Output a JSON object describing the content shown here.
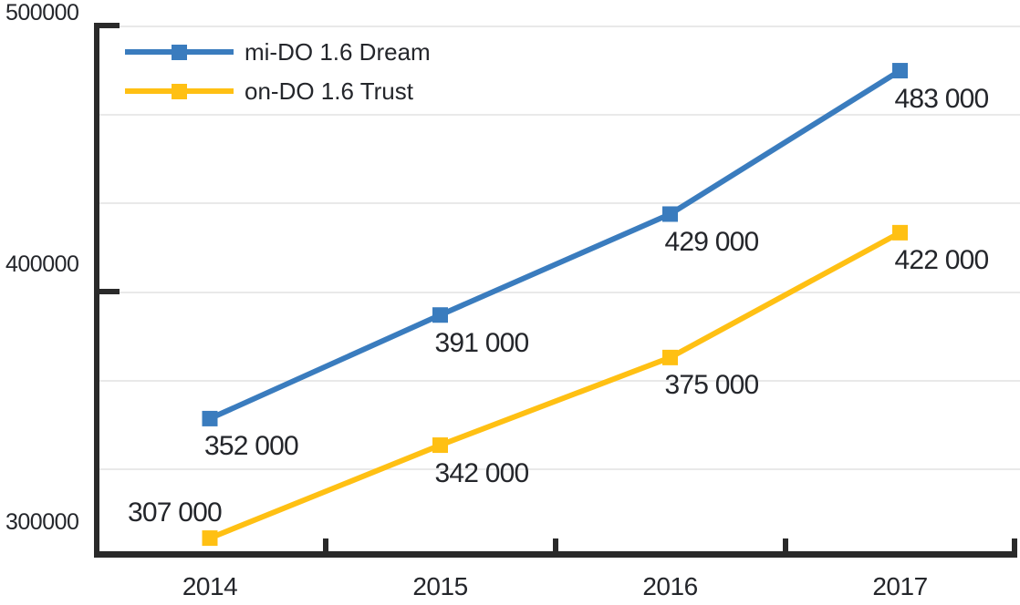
{
  "chart_data": {
    "type": "line",
    "categories": [
      "2014",
      "2015",
      "2016",
      "2017"
    ],
    "series": [
      {
        "name": "mi-DO 1.6 Dream",
        "color": "#3a7cbe",
        "values": [
          352000,
          391000,
          429000,
          483000
        ],
        "point_labels": [
          "352 000",
          "391 000",
          "429 000",
          "483 000"
        ],
        "label_pos": [
          "below",
          "below",
          "below",
          "below"
        ]
      },
      {
        "name": "on-DO 1.6 Trust",
        "color": "#ffc013",
        "values": [
          307000,
          342000,
          375000,
          422000
        ],
        "point_labels": [
          "307 000",
          "342 000",
          "375 000",
          "422 000"
        ],
        "label_pos": [
          "above-left",
          "below",
          "below",
          "below"
        ]
      }
    ],
    "y_axis": {
      "min": 300000,
      "max": 500000,
      "major_unit": 100000,
      "tick_labels": [
        "500000",
        "400000",
        "300000"
      ],
      "minor_gridlines_per_major": 3
    },
    "x_axis": {
      "tick_marks": "between-categories"
    },
    "legend": {
      "position": "top-left",
      "marker": "square-on-line"
    },
    "grid": true,
    "colors": {
      "axis": "#2a2a2a",
      "gridline": "#e9e9e9",
      "text": "#24262b"
    },
    "title": "",
    "xlabel": "",
    "ylabel": ""
  }
}
